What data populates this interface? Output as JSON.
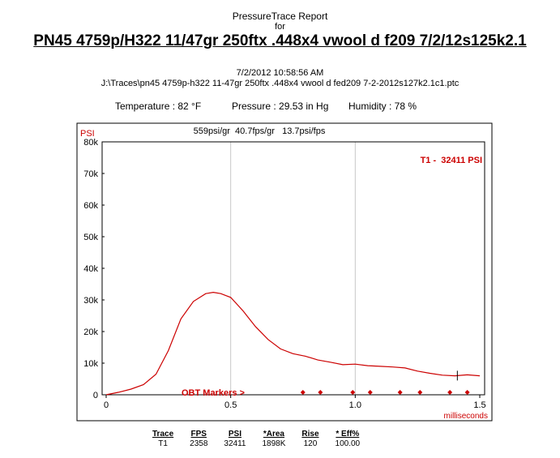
{
  "report": {
    "title": "PressureTrace Report",
    "for_label": "for",
    "trace_name": "PN45 4759p/H322 11/47gr 250ftx .448x4 vwool d f209 7/2/12s125k2.1",
    "datetime": "7/2/2012 10:58:56 AM",
    "path": "J:\\Traces\\pn45 4759p-h322 11-47gr 250ftx .448x4 vwool d fed209 7-2-2012s127k2.1c1.ptc"
  },
  "conditions": {
    "temperature": "Temperature : 82 °F",
    "pressure": "Pressure : 29.53 in Hg",
    "humidity": "Humidity : 78 %"
  },
  "colors": {
    "trace": "#cc0000",
    "grid": "#c8c8c8",
    "frame": "#000000"
  },
  "chart_data": {
    "type": "line",
    "stats_line": "559psi/gr  40.7fps/gr   13.7psi/fps",
    "ylabel": "PSI",
    "xlabel": "milliseconds",
    "xlim": [
      0,
      1.5
    ],
    "ylim": [
      0,
      80000
    ],
    "x_ticks": [
      "0",
      "0.5",
      "1.0",
      "1.5"
    ],
    "y_ticks": [
      "0",
      "10k",
      "20k",
      "30k",
      "40k",
      "50k",
      "60k",
      "70k",
      "80k"
    ],
    "grid": true,
    "series": [
      {
        "name": "T1",
        "label": "T1 -  32411 PSI",
        "x": [
          0,
          0.05,
          0.1,
          0.15,
          0.2,
          0.25,
          0.3,
          0.35,
          0.4,
          0.43,
          0.46,
          0.5,
          0.55,
          0.6,
          0.65,
          0.7,
          0.75,
          0.8,
          0.85,
          0.9,
          0.95,
          1.0,
          1.05,
          1.1,
          1.15,
          1.2,
          1.25,
          1.3,
          1.35,
          1.4,
          1.45,
          1.5
        ],
        "y": [
          0,
          800,
          1800,
          3200,
          6500,
          14000,
          24000,
          29500,
          32000,
          32400,
          32000,
          30800,
          26500,
          21500,
          17500,
          14500,
          13000,
          12200,
          11000,
          10300,
          9500,
          9700,
          9200,
          9000,
          8800,
          8500,
          7500,
          6800,
          6200,
          6000,
          6300,
          6000
        ]
      }
    ],
    "obt_label": "OBT Markers >",
    "obt_markers": [
      0.79,
      0.86,
      0.99,
      1.06,
      1.18,
      1.26,
      1.38,
      1.45
    ],
    "cursor_x": 1.41
  },
  "summary_table": {
    "headers": [
      "Trace",
      "FPS",
      "PSI",
      "*Area",
      "Rise",
      "* Eff%"
    ],
    "row": [
      "T1",
      "2358",
      "32411",
      "1898K",
      "120",
      "100.00"
    ]
  }
}
